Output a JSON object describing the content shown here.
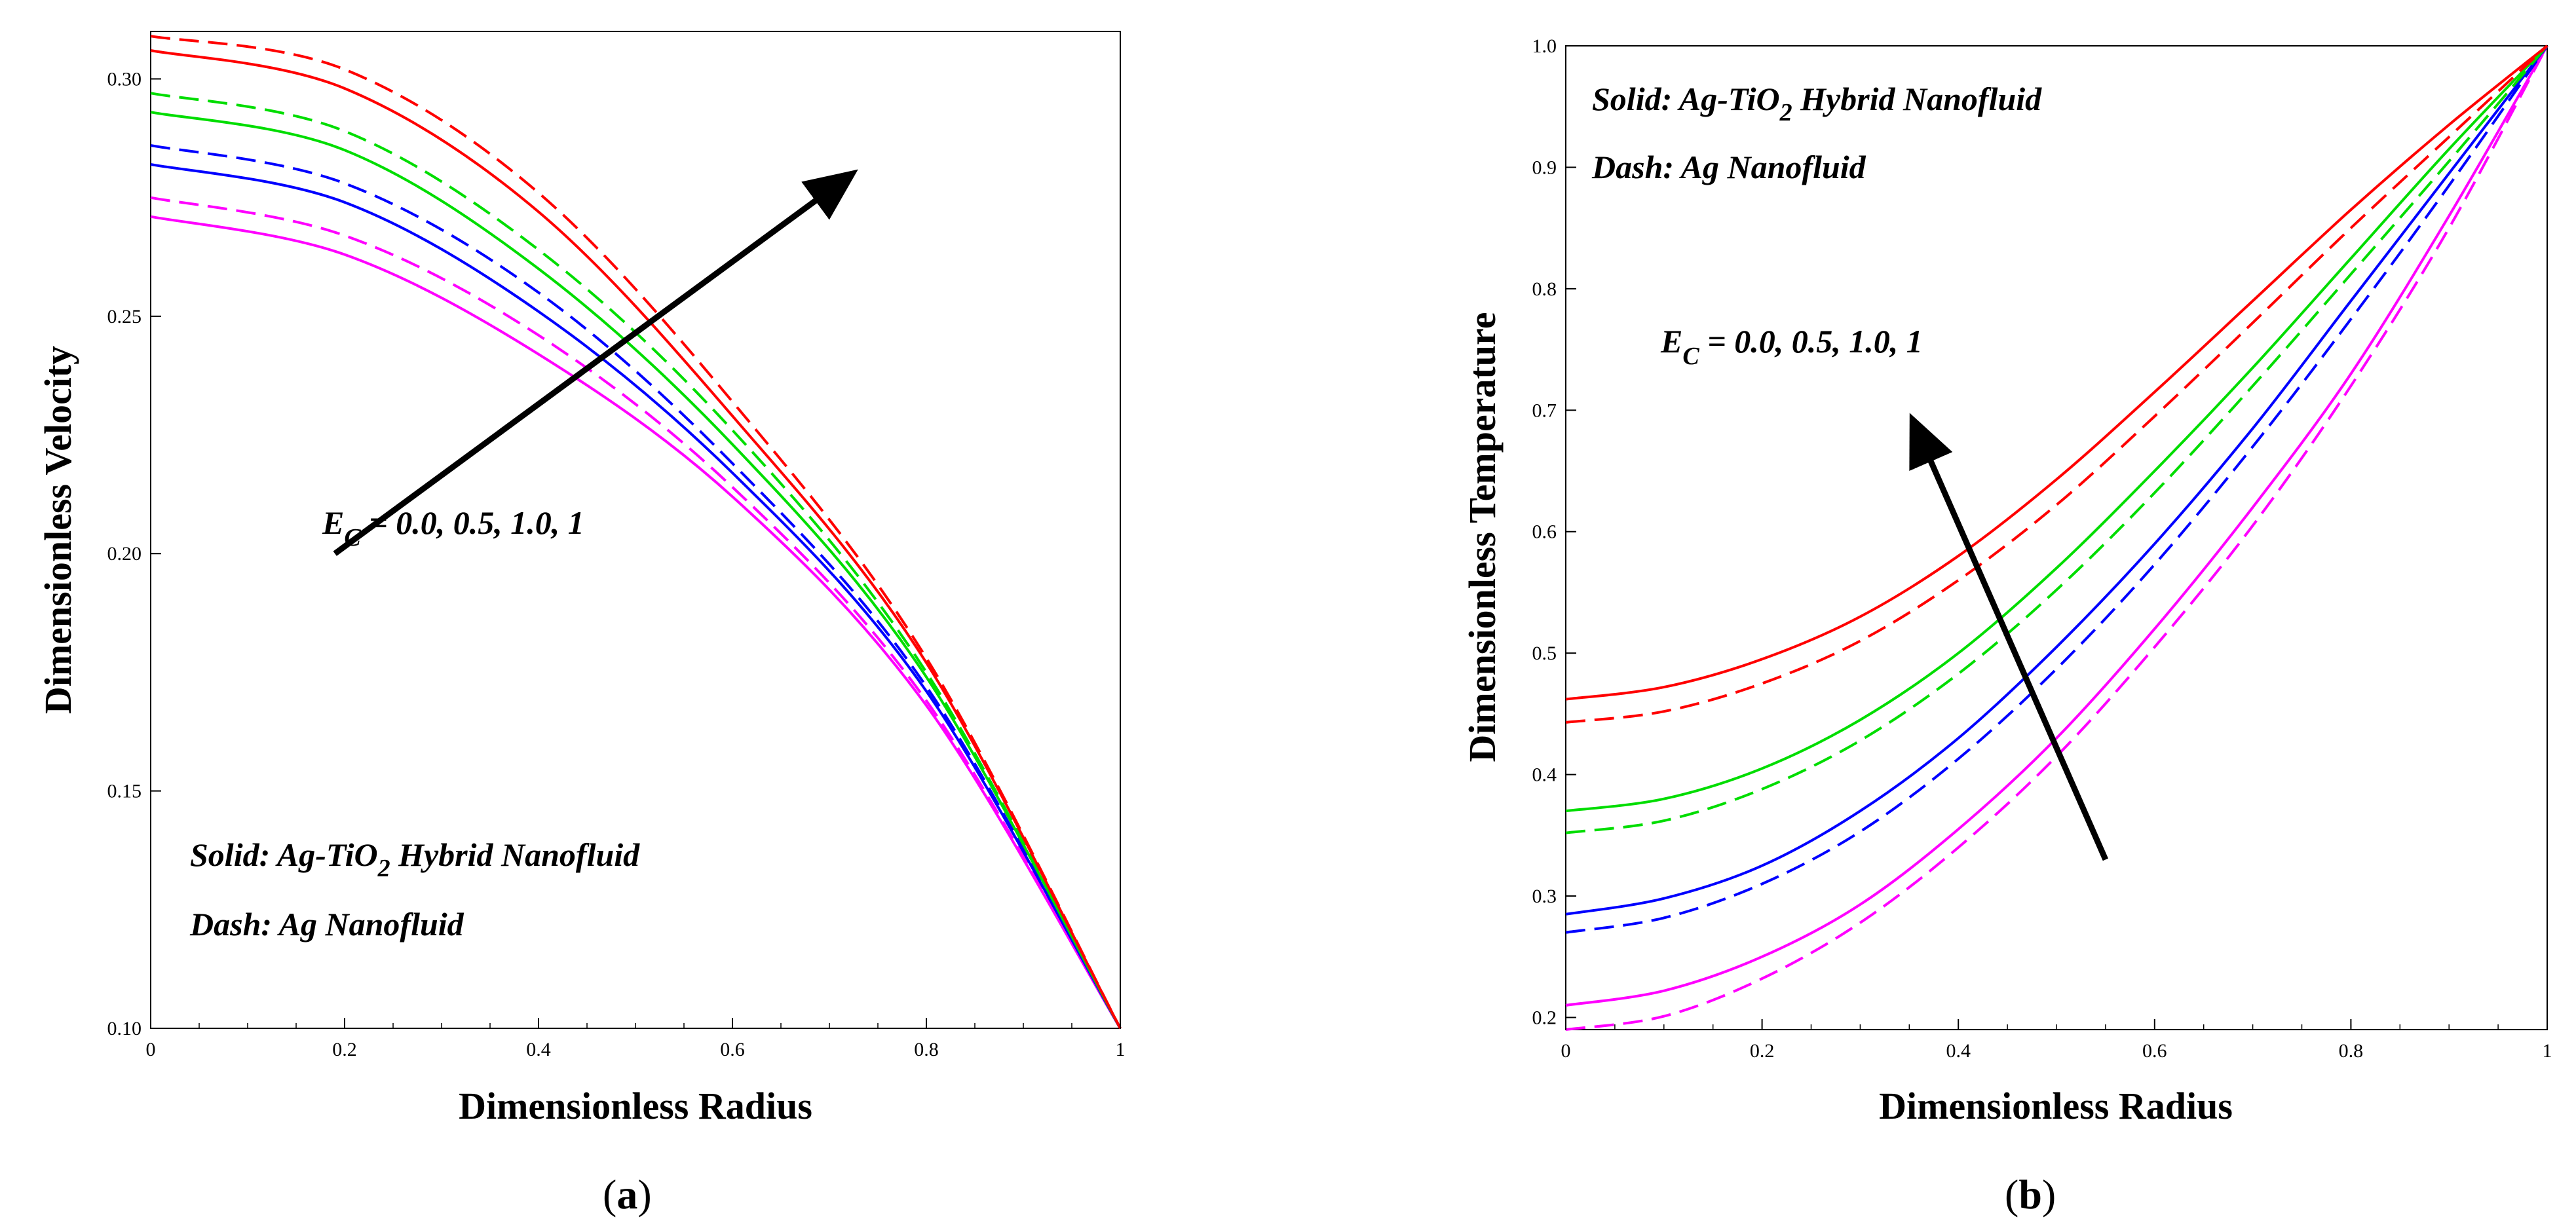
{
  "figure_title": "",
  "series_colors": {
    "0.0": "#ff00ff",
    "0.5": "#0000ff",
    "1.0": "#00dd00",
    "1": "#ff0000"
  },
  "chart_data": [
    {
      "type": "line",
      "panel_label": "(a)",
      "panel_letter": "a",
      "title": "",
      "xlabel": "Dimensionless Radius",
      "ylabel": "Dimensionless Velocity",
      "xlim": [
        0,
        1
      ],
      "ylim": [
        0.1,
        0.31
      ],
      "xticks": [
        0,
        0.2,
        0.4,
        0.6,
        0.8,
        1
      ],
      "xtick_labels": [
        "0",
        "0.2",
        "0.4",
        "0.6",
        "0.8",
        "1"
      ],
      "yticks": [
        0.1,
        0.15,
        0.2,
        0.25,
        0.3
      ],
      "ytick_labels": [
        "0.10",
        "0.15",
        "0.20",
        "0.25",
        "0.30"
      ],
      "grid": false,
      "legend_note": {
        "solid_prefix": "Solid: Ag-TiO",
        "solid_sub": "2",
        "solid_suffix": " Hybrid Nanofluid",
        "dash": "Dash: Ag Nanofluid"
      },
      "param_label": {
        "E": "E",
        "sub": "C",
        "rest": " = 0.0, 0.5, 1.0, 1"
      },
      "arrow": {
        "from": [
          0.19,
          0.2
        ],
        "to": [
          0.71,
          0.278
        ]
      },
      "series": [
        {
          "name": "Solid, Ec = 0.0",
          "color": "#ff00ff",
          "dash": false,
          "x": [
            0,
            0.2,
            0.4,
            0.6,
            0.8,
            1
          ],
          "y": [
            0.271,
            0.263,
            0.242,
            0.212,
            0.168,
            0.1
          ]
        },
        {
          "name": "Dash, Ec = 0.0",
          "color": "#ff00ff",
          "dash": true,
          "x": [
            0,
            0.2,
            0.4,
            0.6,
            0.8,
            1
          ],
          "y": [
            0.275,
            0.267,
            0.246,
            0.214,
            0.169,
            0.1
          ]
        },
        {
          "name": "Solid, Ec = 0.5",
          "color": "#0000ff",
          "dash": false,
          "x": [
            0,
            0.2,
            0.4,
            0.6,
            0.8,
            1
          ],
          "y": [
            0.282,
            0.274,
            0.251,
            0.217,
            0.171,
            0.1
          ]
        },
        {
          "name": "Dash, Ec = 0.5",
          "color": "#0000ff",
          "dash": true,
          "x": [
            0,
            0.2,
            0.4,
            0.6,
            0.8,
            1
          ],
          "y": [
            0.286,
            0.278,
            0.255,
            0.219,
            0.172,
            0.1
          ]
        },
        {
          "name": "Solid, Ec = 1.0",
          "color": "#00dd00",
          "dash": false,
          "x": [
            0,
            0.2,
            0.4,
            0.6,
            0.8,
            1
          ],
          "y": [
            0.293,
            0.285,
            0.26,
            0.223,
            0.174,
            0.1
          ]
        },
        {
          "name": "Dash, Ec = 1.0",
          "color": "#00dd00",
          "dash": true,
          "x": [
            0,
            0.2,
            0.4,
            0.6,
            0.8,
            1
          ],
          "y": [
            0.297,
            0.289,
            0.264,
            0.226,
            0.175,
            0.1
          ]
        },
        {
          "name": "Solid, Ec = 1",
          "color": "#ff0000",
          "dash": false,
          "x": [
            0,
            0.2,
            0.4,
            0.6,
            0.8,
            1
          ],
          "y": [
            0.306,
            0.298,
            0.272,
            0.229,
            0.177,
            0.1
          ]
        },
        {
          "name": "Dash, Ec = 1",
          "color": "#ff0000",
          "dash": true,
          "x": [
            0,
            0.2,
            0.4,
            0.6,
            0.8,
            1
          ],
          "y": [
            0.309,
            0.302,
            0.276,
            0.232,
            0.178,
            0.1
          ]
        }
      ]
    },
    {
      "type": "line",
      "panel_label": "(b)",
      "panel_letter": "b",
      "title": "",
      "xlabel": "Dimensionless Radius",
      "ylabel": "Dimensionless Temperature",
      "xlim": [
        0,
        1
      ],
      "ylim": [
        0.19,
        1.0
      ],
      "xticks": [
        0,
        0.2,
        0.4,
        0.6,
        0.8,
        1
      ],
      "xtick_labels": [
        "0",
        "0.2",
        "0.4",
        "0.6",
        "0.8",
        "1"
      ],
      "yticks": [
        0.2,
        0.3,
        0.4,
        0.5,
        0.6,
        0.7,
        0.8,
        0.9,
        1.0
      ],
      "ytick_labels": [
        "0.2",
        "0.3",
        "0.4",
        "0.5",
        "0.6",
        "0.7",
        "0.8",
        "0.9",
        "1.0"
      ],
      "grid": false,
      "legend_note": {
        "solid_prefix": "Solid: Ag-TiO",
        "solid_sub": "2",
        "solid_suffix": " Hybrid Nanofluid",
        "dash": "Dash: Ag Nanofluid"
      },
      "param_label": {
        "E": "E",
        "sub": "C",
        "rest": " = 0.0, 0.5, 1.0, 1"
      },
      "arrow": {
        "from": [
          0.55,
          0.33
        ],
        "to": [
          0.36,
          0.68
        ]
      },
      "series": [
        {
          "name": "Solid, Ec = 0.0",
          "color": "#ff00ff",
          "dash": false,
          "x": [
            0,
            0.1,
            0.2,
            0.3,
            0.4,
            0.5,
            0.6,
            0.7,
            0.8,
            0.9,
            1
          ],
          "y": [
            0.21,
            0.222,
            0.25,
            0.293,
            0.355,
            0.43,
            0.52,
            0.62,
            0.73,
            0.86,
            1.0
          ]
        },
        {
          "name": "Dash, Ec = 0.0",
          "color": "#ff00ff",
          "dash": true,
          "x": [
            0,
            0.1,
            0.2,
            0.3,
            0.4,
            0.5,
            0.6,
            0.7,
            0.8,
            0.9,
            1
          ],
          "y": [
            0.19,
            0.201,
            0.232,
            0.278,
            0.34,
            0.415,
            0.505,
            0.605,
            0.72,
            0.85,
            1.0
          ]
        },
        {
          "name": "Solid, Ec = 0.5",
          "color": "#0000ff",
          "dash": false,
          "x": [
            0,
            0.1,
            0.2,
            0.3,
            0.4,
            0.5,
            0.6,
            0.7,
            0.8,
            0.9,
            1
          ],
          "y": [
            0.285,
            0.298,
            0.325,
            0.37,
            0.43,
            0.505,
            0.59,
            0.685,
            0.79,
            0.895,
            1.0
          ]
        },
        {
          "name": "Dash, Ec = 0.5",
          "color": "#0000ff",
          "dash": true,
          "x": [
            0,
            0.1,
            0.2,
            0.3,
            0.4,
            0.5,
            0.6,
            0.7,
            0.8,
            0.9,
            1
          ],
          "y": [
            0.27,
            0.282,
            0.31,
            0.353,
            0.413,
            0.487,
            0.573,
            0.67,
            0.775,
            0.885,
            1.0
          ]
        },
        {
          "name": "Solid, Ec = 1.0",
          "color": "#00dd00",
          "dash": false,
          "x": [
            0,
            0.1,
            0.2,
            0.3,
            0.4,
            0.5,
            0.6,
            0.7,
            0.8,
            0.9,
            1
          ],
          "y": [
            0.37,
            0.38,
            0.405,
            0.445,
            0.5,
            0.57,
            0.65,
            0.735,
            0.825,
            0.915,
            1.0
          ]
        },
        {
          "name": "Dash, Ec = 1.0",
          "color": "#00dd00",
          "dash": true,
          "x": [
            0,
            0.1,
            0.2,
            0.3,
            0.4,
            0.5,
            0.6,
            0.7,
            0.8,
            0.9,
            1
          ],
          "y": [
            0.352,
            0.362,
            0.388,
            0.428,
            0.483,
            0.552,
            0.632,
            0.72,
            0.812,
            0.905,
            1.0
          ]
        },
        {
          "name": "Solid, Ec = 1",
          "color": "#ff0000",
          "dash": false,
          "x": [
            0,
            0.1,
            0.2,
            0.3,
            0.4,
            0.5,
            0.6,
            0.7,
            0.8,
            0.9,
            1
          ],
          "y": [
            0.462,
            0.472,
            0.495,
            0.53,
            0.58,
            0.643,
            0.715,
            0.79,
            0.865,
            0.935,
            1.0
          ]
        },
        {
          "name": "Dash, Ec = 1",
          "color": "#ff0000",
          "dash": true,
          "x": [
            0,
            0.1,
            0.2,
            0.3,
            0.4,
            0.5,
            0.6,
            0.7,
            0.8,
            0.9,
            1
          ],
          "y": [
            0.443,
            0.452,
            0.475,
            0.51,
            0.56,
            0.622,
            0.695,
            0.772,
            0.85,
            0.925,
            1.0
          ]
        }
      ]
    }
  ]
}
